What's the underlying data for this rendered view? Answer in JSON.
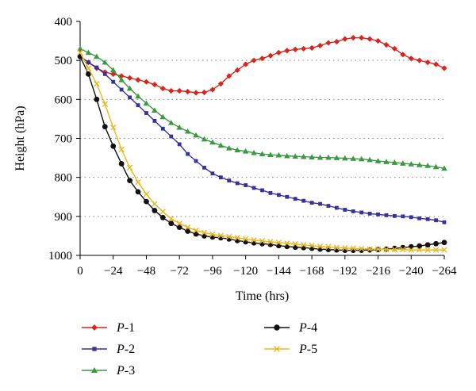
{
  "chart_data": {
    "type": "line",
    "xlabel": "Time (hrs)",
    "ylabel": "Height (hPa)",
    "x_ticks": [
      0,
      -24,
      -48,
      -72,
      -96,
      -120,
      -144,
      -168,
      -192,
      -216,
      -240,
      -264
    ],
    "x_tick_labels": [
      "0",
      "−24",
      "−48",
      "−72",
      "−96",
      "−120",
      "−144",
      "−168",
      "−192",
      "−216",
      "−240",
      "−264"
    ],
    "xlim": [
      0,
      -264
    ],
    "ylim": [
      400,
      1000
    ],
    "y_ticks": [
      400,
      500,
      600,
      700,
      800,
      900,
      1000
    ],
    "y_tick_labels": [
      "400",
      "500",
      "600",
      "700",
      "800",
      "900",
      "1000"
    ],
    "y_inverted": true,
    "grid": "horizontal dotted",
    "legend_position": "bottom",
    "x": [
      0,
      -6,
      -12,
      -18,
      -24,
      -30,
      -36,
      -42,
      -48,
      -54,
      -60,
      -66,
      -72,
      -78,
      -84,
      -90,
      -96,
      -102,
      -108,
      -114,
      -120,
      -126,
      -132,
      -138,
      -144,
      -150,
      -156,
      -162,
      -168,
      -174,
      -180,
      -186,
      -192,
      -198,
      -204,
      -210,
      -216,
      -222,
      -228,
      -234,
      -240,
      -246,
      -252,
      -258,
      -264
    ],
    "series": [
      {
        "name_prefix": "P",
        "name_suffix": "-1",
        "color": "#d7261e",
        "marker": "diamond",
        "values": [
          490,
          505,
          520,
          530,
          535,
          540,
          545,
          550,
          555,
          562,
          572,
          578,
          578,
          580,
          583,
          582,
          575,
          560,
          540,
          525,
          510,
          500,
          495,
          488,
          480,
          475,
          472,
          470,
          468,
          462,
          455,
          452,
          445,
          442,
          442,
          445,
          450,
          460,
          470,
          485,
          495,
          500,
          505,
          510,
          520
        ]
      },
      {
        "name_prefix": "P",
        "name_suffix": "-2",
        "color": "#35339a",
        "marker": "square",
        "values": [
          490,
          505,
          518,
          535,
          555,
          575,
          595,
          615,
          635,
          655,
          675,
          695,
          715,
          740,
          758,
          775,
          790,
          800,
          808,
          815,
          820,
          827,
          833,
          840,
          845,
          850,
          855,
          860,
          865,
          868,
          873,
          878,
          883,
          887,
          890,
          893,
          895,
          897,
          899,
          900,
          902,
          905,
          907,
          910,
          915
        ]
      },
      {
        "name_prefix": "P",
        "name_suffix": "-3",
        "color": "#3a9a42",
        "marker": "triangle",
        "values": [
          470,
          480,
          490,
          505,
          525,
          550,
          572,
          592,
          610,
          628,
          645,
          660,
          672,
          682,
          692,
          702,
          710,
          718,
          725,
          730,
          733,
          737,
          740,
          742,
          743,
          745,
          746,
          747,
          748,
          749,
          749,
          750,
          751,
          752,
          753,
          755,
          758,
          760,
          762,
          764,
          766,
          768,
          770,
          773,
          777
        ]
      },
      {
        "name_prefix": "P",
        "name_suffix": "-4",
        "color": "#111111",
        "marker": "circle",
        "values": [
          490,
          535,
          600,
          670,
          720,
          765,
          808,
          837,
          862,
          885,
          903,
          918,
          928,
          938,
          945,
          950,
          953,
          955,
          958,
          962,
          965,
          968,
          970,
          972,
          975,
          977,
          979,
          980,
          982,
          984,
          985,
          986,
          987,
          987,
          987,
          986,
          985,
          984,
          982,
          980,
          978,
          976,
          973,
          970,
          967
        ]
      },
      {
        "name_prefix": "P",
        "name_suffix": "-5",
        "color": "#e8b81f",
        "marker": "x",
        "values": [
          480,
          520,
          560,
          612,
          672,
          728,
          775,
          812,
          843,
          868,
          888,
          906,
          918,
          928,
          936,
          942,
          946,
          949,
          952,
          955,
          958,
          961,
          963,
          965,
          967,
          969,
          971,
          973,
          975,
          977,
          978,
          980,
          981,
          982,
          983,
          984,
          984,
          985,
          985,
          985,
          986,
          986,
          986,
          986,
          986
        ]
      }
    ]
  }
}
